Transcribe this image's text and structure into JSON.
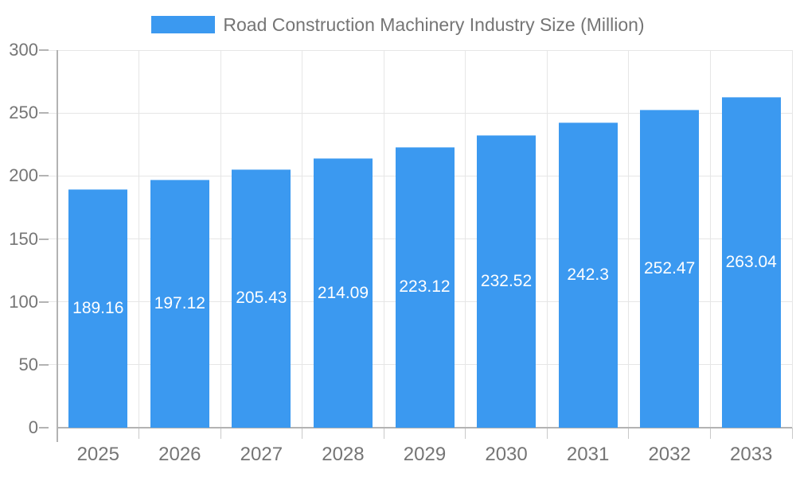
{
  "chart_data": {
    "type": "bar",
    "title": "",
    "series_name": "Road Construction Machinery Industry Size (Million)",
    "legend_position": "top",
    "categories": [
      "2025",
      "2026",
      "2027",
      "2028",
      "2029",
      "2030",
      "2031",
      "2032",
      "2033"
    ],
    "values": [
      189.16,
      197.12,
      205.43,
      214.09,
      223.12,
      232.52,
      242.3,
      252.47,
      263.04
    ],
    "value_labels": [
      "189.16",
      "197.12",
      "205.43",
      "214.09",
      "223.12",
      "232.52",
      "242.3",
      "252.47",
      "263.04"
    ],
    "ylim": [
      0,
      300
    ],
    "yticks": [
      0,
      50,
      100,
      150,
      200,
      250,
      300
    ],
    "ytick_labels": [
      "0",
      "50",
      "100",
      "150",
      "200",
      "250",
      "300"
    ],
    "grid": true,
    "colors": {
      "bar": "#3B99F0",
      "bar_edge_highlight": "rgba(255,255,255,0.4)",
      "value_label": "#ffffff",
      "axis_text": "#757575",
      "legend_text": "#757575",
      "gridline": "#e6e6e6",
      "axis_line": "#b3b3b3",
      "tick": "#c9c9c9",
      "background": "#ffffff"
    }
  }
}
